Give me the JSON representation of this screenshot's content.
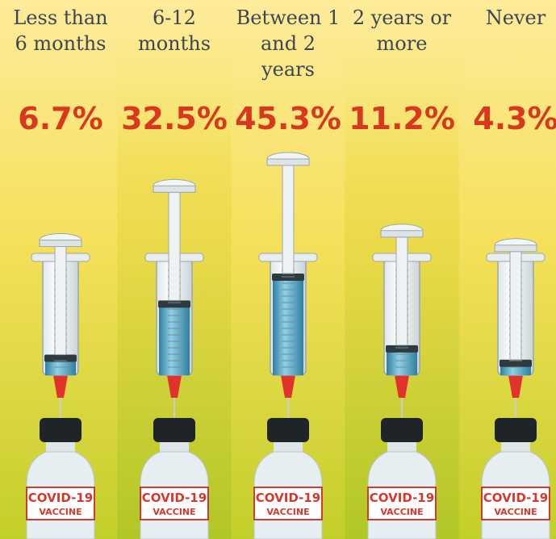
{
  "chart_data": {
    "type": "syringe",
    "categories": [
      "Less than 6 months",
      "6-12 months",
      "Between 1 and 2 years",
      "2 years or more",
      "Never"
    ],
    "values": [
      6.7,
      32.5,
      45.3,
      11.2,
      4.3
    ],
    "value_labels": [
      "6.7%",
      "32.5%",
      "45.3%",
      "11.2%",
      "4.3%"
    ],
    "vial_text": "COVID-19",
    "vial_subtext": "VACCINE",
    "color": "#4a9fc0"
  }
}
